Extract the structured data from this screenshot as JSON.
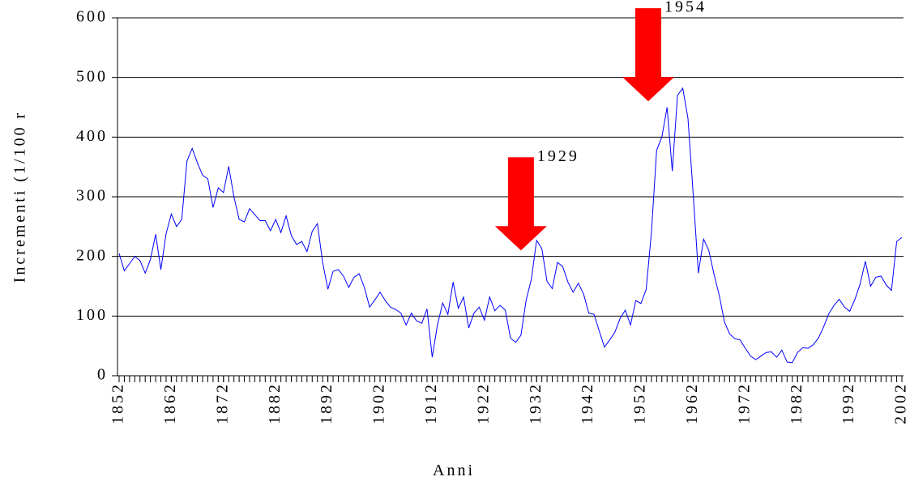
{
  "chart_data": {
    "type": "line",
    "x_label": "Anni",
    "y_label": "Incrementi (1/100 r",
    "x": [
      1852,
      1853,
      1854,
      1855,
      1856,
      1857,
      1858,
      1859,
      1860,
      1861,
      1862,
      1863,
      1864,
      1865,
      1866,
      1867,
      1868,
      1869,
      1870,
      1871,
      1872,
      1873,
      1874,
      1875,
      1876,
      1877,
      1878,
      1879,
      1880,
      1881,
      1882,
      1883,
      1884,
      1885,
      1886,
      1887,
      1888,
      1889,
      1890,
      1891,
      1892,
      1893,
      1894,
      1895,
      1896,
      1897,
      1898,
      1899,
      1900,
      1901,
      1902,
      1903,
      1904,
      1905,
      1906,
      1907,
      1908,
      1909,
      1910,
      1911,
      1912,
      1913,
      1914,
      1915,
      1916,
      1917,
      1918,
      1919,
      1920,
      1921,
      1922,
      1923,
      1924,
      1925,
      1926,
      1927,
      1928,
      1929,
      1930,
      1931,
      1932,
      1933,
      1934,
      1935,
      1936,
      1937,
      1938,
      1939,
      1940,
      1941,
      1942,
      1943,
      1944,
      1945,
      1946,
      1947,
      1948,
      1949,
      1950,
      1951,
      1952,
      1953,
      1954,
      1955,
      1956,
      1957,
      1958,
      1959,
      1960,
      1961,
      1962,
      1963,
      1964,
      1965,
      1966,
      1967,
      1968,
      1969,
      1970,
      1971,
      1972,
      1973,
      1974,
      1975,
      1976,
      1977,
      1978,
      1979,
      1980,
      1981,
      1982,
      1983,
      1984,
      1985,
      1986,
      1987,
      1988,
      1989,
      1990,
      1991,
      1992,
      1993,
      1994,
      1995,
      1996,
      1997,
      1998,
      1999,
      2000,
      2001,
      2002
    ],
    "series": [
      {
        "color": "#0000ff",
        "values": [
          205,
          176,
          188,
          200,
          193,
          172,
          195,
          237,
          178,
          238,
          271,
          250,
          262,
          360,
          381,
          357,
          336,
          330,
          282,
          315,
          307,
          351,
          300,
          262,
          258,
          280,
          270,
          260,
          260,
          243,
          262,
          240,
          268,
          235,
          220,
          225,
          208,
          242,
          255,
          190,
          145,
          175,
          178,
          167,
          148,
          165,
          171,
          148,
          115,
          127,
          140,
          126,
          115,
          111,
          105,
          85,
          105,
          92,
          88,
          112,
          31,
          85,
          122,
          103,
          157,
          113,
          132,
          80,
          105,
          115,
          93,
          132,
          109,
          118,
          110,
          63,
          56,
          68,
          127,
          162,
          227,
          213,
          158,
          146,
          190,
          183,
          157,
          140,
          155,
          137,
          105,
          103,
          75,
          48,
          60,
          73,
          96,
          110,
          85,
          126,
          121,
          145,
          240,
          378,
          400,
          450,
          343,
          470,
          482,
          432,
          305,
          172,
          229,
          210,
          170,
          135,
          90,
          70,
          62,
          60,
          46,
          33,
          27,
          33,
          39,
          40,
          31,
          43,
          23,
          22,
          39,
          47,
          46,
          52,
          63,
          82,
          104,
          118,
          128,
          115,
          108,
          128,
          154,
          192,
          150,
          165,
          167,
          152,
          143,
          225,
          232
        ]
      }
    ],
    "xlim": [
      1852,
      2002
    ],
    "xticks": [
      1852,
      1862,
      1872,
      1882,
      1892,
      1902,
      1912,
      1922,
      1932,
      1942,
      1952,
      1962,
      1972,
      1982,
      1992,
      2002
    ],
    "ylim": [
      0,
      600
    ],
    "yticks": [
      0,
      100,
      200,
      300,
      400,
      500,
      600
    ],
    "grid": true,
    "annotations": [
      {
        "text": "1929",
        "x": 1929,
        "y": 210,
        "color": "#ff0000"
      },
      {
        "text": "1954",
        "x": 1953.4,
        "y": 460,
        "color": "#ff0000"
      }
    ]
  }
}
